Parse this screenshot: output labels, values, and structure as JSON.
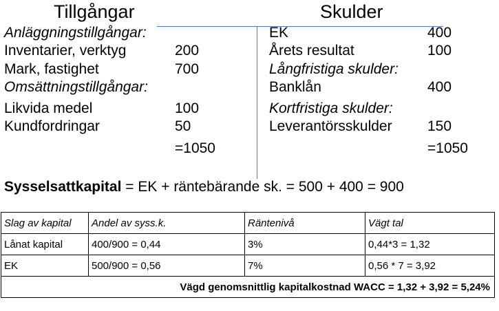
{
  "balance": {
    "assets_heading": "Tillgångar",
    "liabilities_heading": "Skulder",
    "fixed_heading": "Anläggningstillgångar:",
    "assets_rows_a": [
      {
        "label": "Inventarier, verktyg",
        "value": "200"
      },
      {
        "label": "Mark, fastighet",
        "value": "700"
      }
    ],
    "current_heading": "Omsättningstillgångar:",
    "assets_rows_b": [
      {
        "label": "Likvida medel",
        "value": "100"
      },
      {
        "label": "Kundfordringar",
        "value": "50"
      }
    ],
    "assets_total": "=1050",
    "liab_rows_a": [
      {
        "label": "EK",
        "value": "400"
      },
      {
        "label": "Årets resultat",
        "value": "100"
      }
    ],
    "longterm_heading": "Långfristiga skulder:",
    "liab_row_bank": {
      "label": "Banklån",
      "value": "400"
    },
    "shortterm_heading": "Kortfristiga skulder:",
    "liab_row_supplier": {
      "label": "Leverantörsskulder",
      "value": "150"
    },
    "liab_total": "=1050"
  },
  "formula": {
    "term": "Sysselsattkapital",
    "expression": " = EK + räntebärande sk. = 500 + 400 = 900"
  },
  "table": {
    "headers": [
      "Slag av kapital",
      "Andel av syss.k.",
      "Räntenivå",
      "Vägt tal"
    ],
    "rows": [
      [
        "Lånat kapital",
        "400/900 = 0,44",
        "3%",
        "0,44*3 = 1,32"
      ],
      [
        "EK",
        "500/900 = 0,56",
        "7%",
        "0,56 * 7 = 3,92"
      ]
    ],
    "total": "Vägd genomsnittlig kapitalkostnad WACC = 1,32 + 3,92 = 5,24%"
  }
}
